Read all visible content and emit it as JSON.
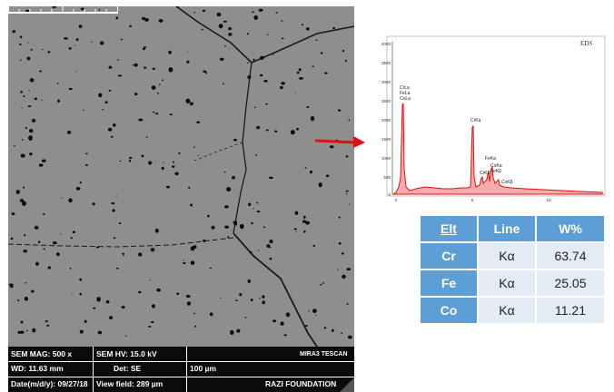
{
  "sem": {
    "info": {
      "mag": "SEM MAG: 500 x",
      "hv": "SEM HV: 15.0 kV",
      "instrument": "MIRA3 TESCAN",
      "wd": "WD: 11.63 mm",
      "det": "Det: SE",
      "scale": "100 µm",
      "date": "Date(m/d/y): 09/27/18",
      "view_field": "View field: 289 µm",
      "foundation": "RAZI FOUNDATION"
    }
  },
  "eds": {
    "title": "EDS",
    "y_ticks": [
      "4000",
      "3500",
      "3000",
      "2500",
      "2000",
      "1500",
      "1000",
      "500",
      "0"
    ],
    "x_ticks": [
      "0",
      "5",
      "10"
    ],
    "peak_labels": {
      "crla": "CrLa",
      "fela": "FeLa",
      "cola": "CoLa",
      "crka": "CrKa",
      "feka": "FeKa",
      "crkb": "CrKβ",
      "coka": "CoKa",
      "fekb": "FeKβ",
      "cokb": "CoKβ"
    },
    "colors": {
      "spectrum": "#e01010",
      "axis": "#222222"
    }
  },
  "table": {
    "headers": [
      "Elt",
      "Line",
      "W%"
    ],
    "rows": [
      {
        "elt": "Cr",
        "line": "Kα",
        "w": "63.74"
      },
      {
        "elt": "Fe",
        "line": "Kα",
        "w": "25.05"
      },
      {
        "elt": "Co",
        "line": "Kα",
        "w": "11.21"
      }
    ],
    "colors": {
      "header": "#5e9ed6",
      "cell": "#e3ebf5"
    }
  },
  "arrow": {
    "color": "#e01010"
  }
}
